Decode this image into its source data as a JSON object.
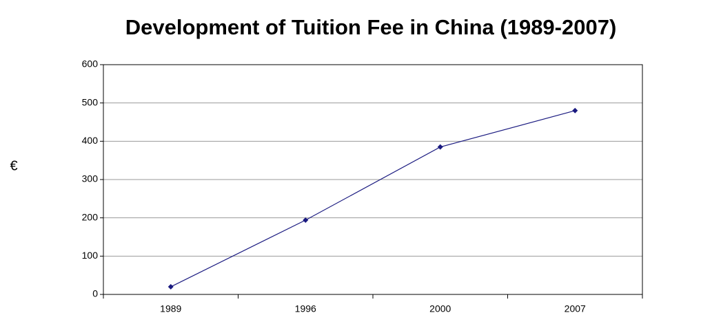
{
  "chart_data": {
    "type": "line",
    "title": "Development of Tuition Fee in China (1989-2007)",
    "y_label": "€",
    "categories": [
      "1989",
      "1996",
      "2000",
      "2007"
    ],
    "series": [
      {
        "name": "Tuition Fee",
        "color": "#1a1a80",
        "values": [
          20,
          194,
          385,
          480
        ]
      }
    ],
    "ylim": [
      0,
      600
    ],
    "yticks": [
      0,
      100,
      200,
      300,
      400,
      500,
      600
    ],
    "grid": true
  }
}
